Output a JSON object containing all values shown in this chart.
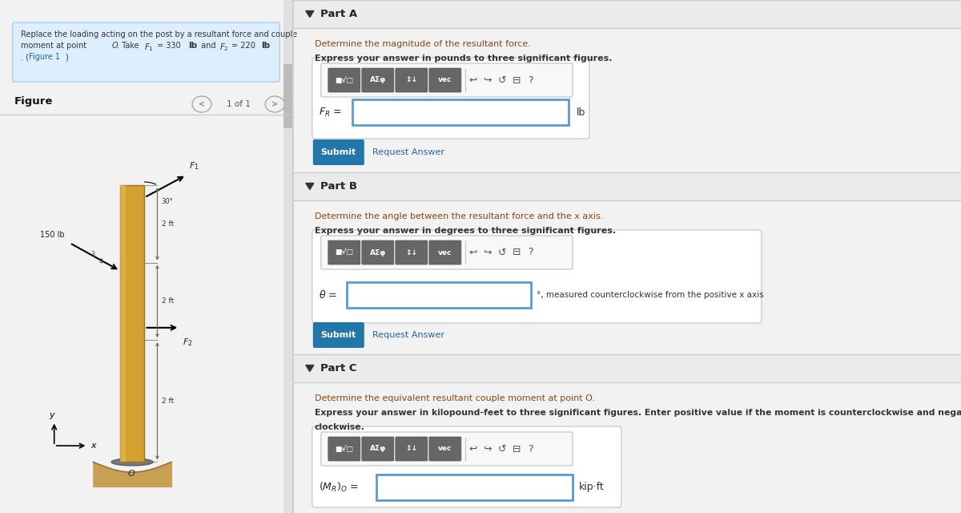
{
  "bg_color": "#f2f2f2",
  "left_panel_bg": "#ffffff",
  "right_panel_bg": "#f2f2f2",
  "problem_box_bg": "#ddeeff",
  "figure_label": "Figure",
  "nav_text": "1 of 1",
  "part_a_header": "Part A",
  "part_a_instruction": "Determine the magnitude of the resultant force.",
  "part_a_bold": "Express your answer in pounds to three significant figures.",
  "part_a_unit": "lb",
  "part_b_header": "Part B",
  "part_b_instruction": "Determine the angle between the resultant force and the x axis.",
  "part_b_bold": "Express your answer in degrees to three significant figures.",
  "part_b_suffix": "°, measured counterclockwise from the positive x axis",
  "part_c_header": "Part C",
  "part_c_instruction": "Determine the equivalent resultant couple moment at point O.",
  "part_c_bold_line1": "Express your answer in kilopound-feet to three significant figures. Enter positive value if the moment is counterclockwise and negative value if the moment is",
  "part_c_bold_line2": "clockwise.",
  "part_c_unit": "kip·ft",
  "submit_color": "#2277aa",
  "submit_text_color": "#ffffff",
  "input_border": "#5b9bd5",
  "section_header_bg": "#ebebeb",
  "divider_color": "#cccccc",
  "instruction_color": "#8b4513",
  "bold_color": "#333333",
  "link_color": "#2266aa",
  "header_text_color": "#222222",
  "btn_dark": "#555555",
  "btn_mid": "#888888"
}
